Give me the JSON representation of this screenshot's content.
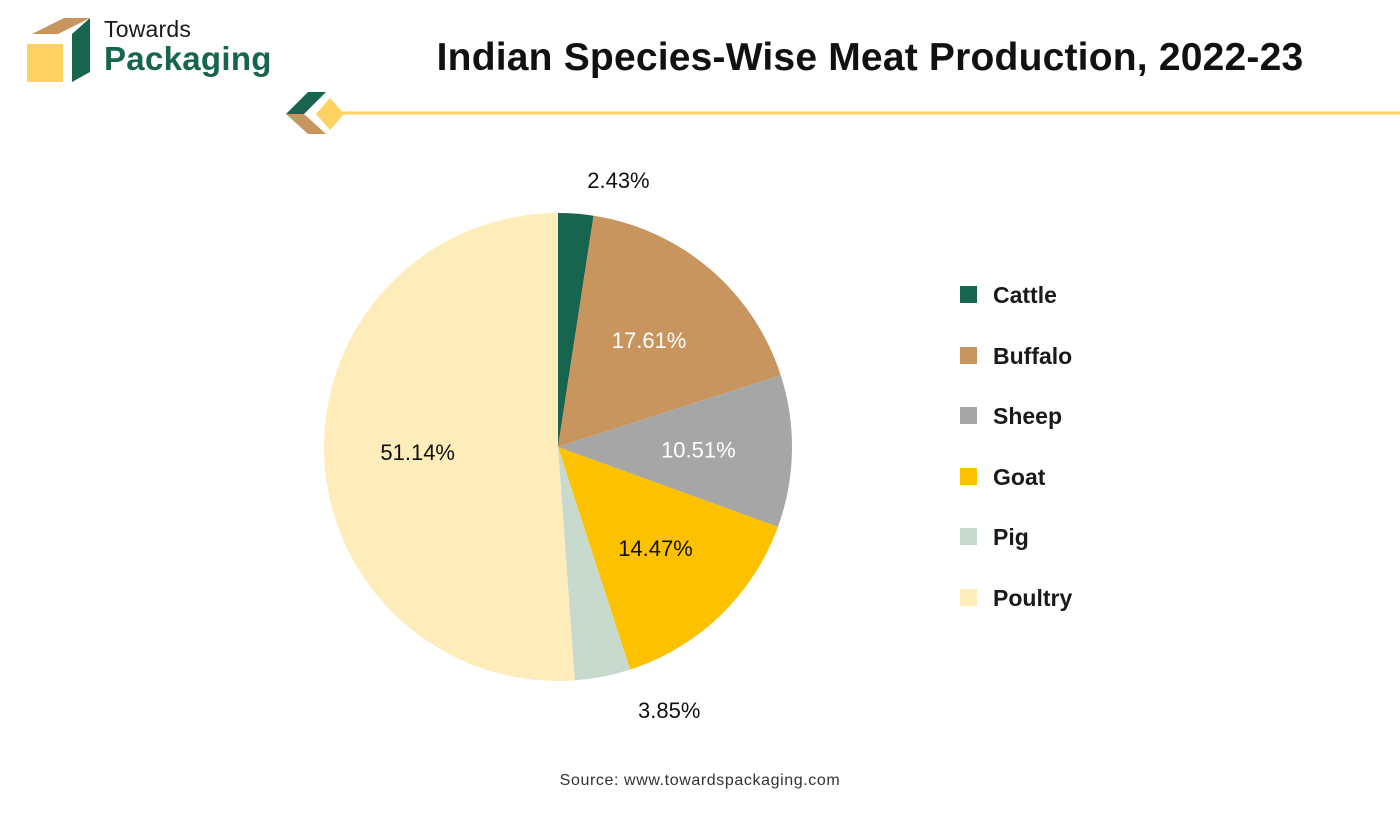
{
  "header": {
    "logo_line1": "Towards",
    "logo_line2": "Packaging",
    "brand_green": "#17654f",
    "brand_tan": "#c9955e",
    "brand_yellow": "#fdd263"
  },
  "chart_data": {
    "type": "pie",
    "title": "Indian Species-Wise Meat Production, 2022-23",
    "slices": [
      {
        "label": "Cattle",
        "value": 2.43,
        "display": "2.43%",
        "color": "#17654f",
        "label_color": "#111111"
      },
      {
        "label": "Buffalo",
        "value": 17.61,
        "display": "17.61%",
        "color": "#c9955e",
        "label_color": "#ffffff"
      },
      {
        "label": "Sheep",
        "value": 10.51,
        "display": "10.51%",
        "color": "#a6a6a6",
        "label_color": "#ffffff"
      },
      {
        "label": "Goat",
        "value": 14.47,
        "display": "14.47%",
        "color": "#fcc200",
        "label_color": "#111111"
      },
      {
        "label": "Pig",
        "value": 3.85,
        "display": "3.85%",
        "color": "#c8dace",
        "label_color": "#111111"
      },
      {
        "label": "Poultry",
        "value": 51.14,
        "display": "51.14%",
        "color": "#feedbb",
        "label_color": "#111111"
      }
    ],
    "legend_position": "right"
  },
  "footer": {
    "source": "Source: www.towardspackaging.com"
  }
}
